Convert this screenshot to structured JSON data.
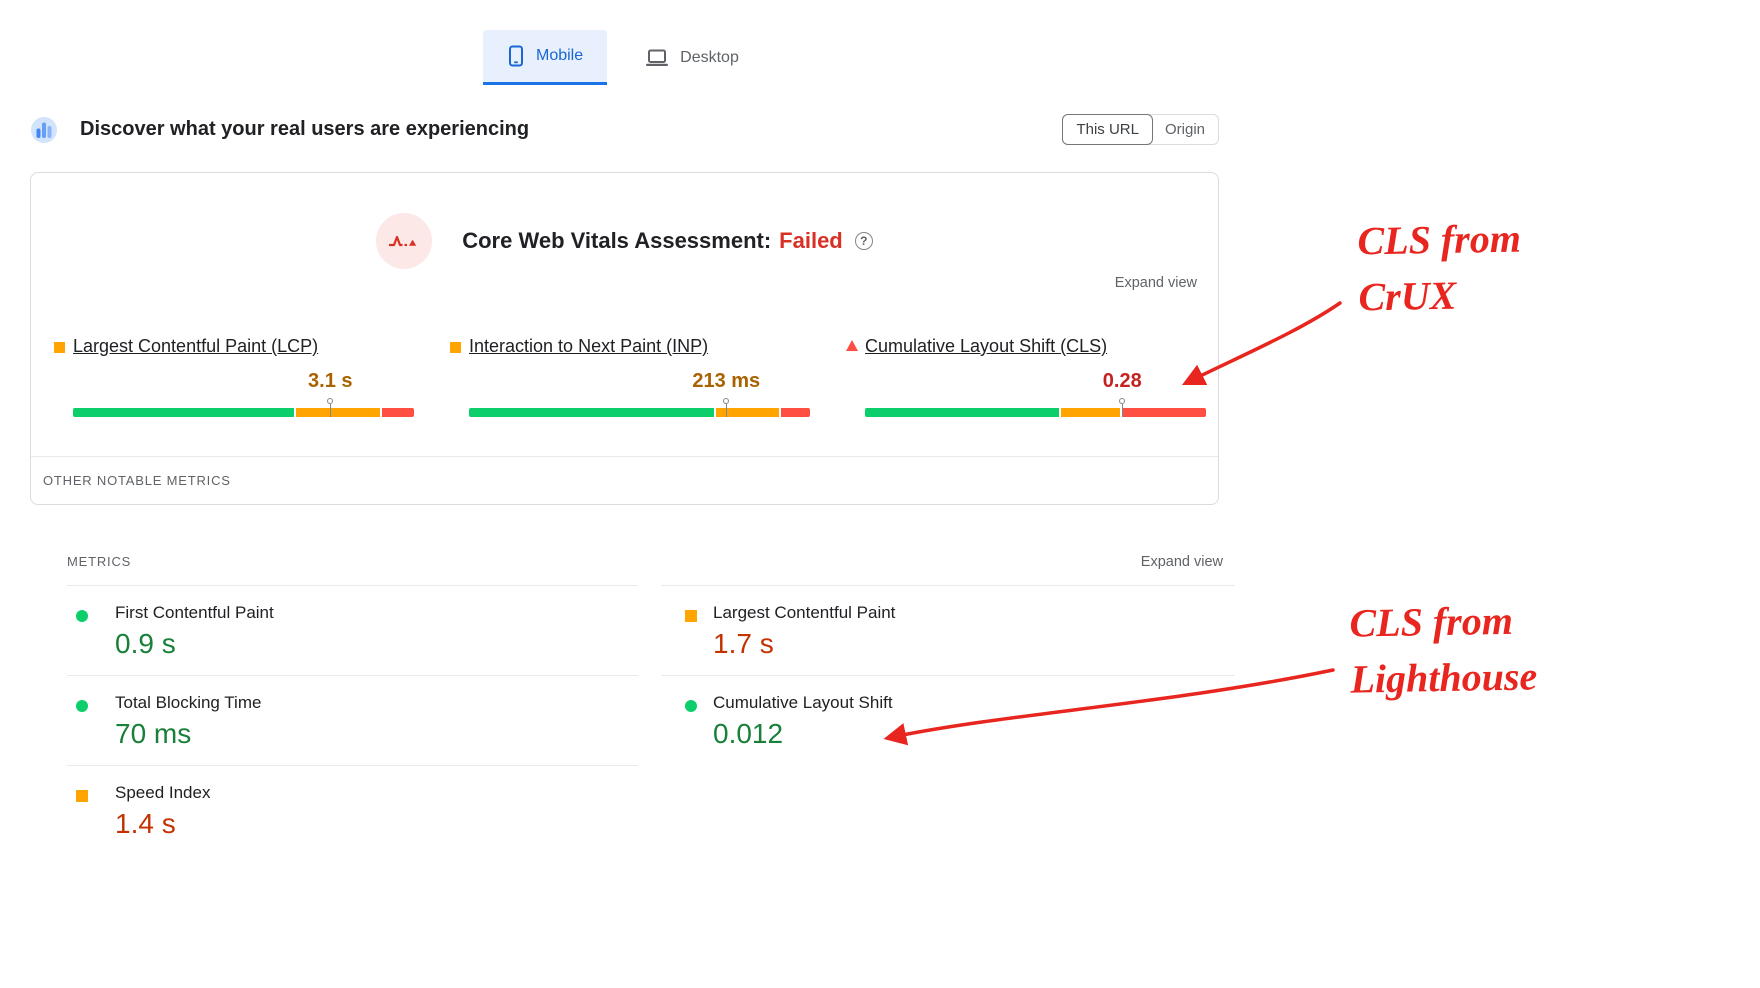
{
  "device_tabs": {
    "mobile": "Mobile",
    "desktop": "Desktop"
  },
  "field_header": {
    "title": "Discover what your real users are experiencing",
    "scope_toggle": {
      "this_url": "This URL",
      "origin": "Origin"
    }
  },
  "cwv_card": {
    "assessment_label": "Core Web Vitals Assessment:",
    "assessment_result": "Failed",
    "expand_view": "Expand view",
    "other_metrics_label": "OTHER NOTABLE METRICS",
    "metrics": [
      {
        "name": "Largest Contentful Paint (LCP)",
        "value": "3.1 s",
        "rating": "ni",
        "icon": "square",
        "distribution_pct": [
          65,
          25,
          10
        ],
        "marker_pct": 75
      },
      {
        "name": "Interaction to Next Paint (INP)",
        "value": "213 ms",
        "rating": "ni",
        "icon": "square",
        "distribution_pct": [
          72,
          19,
          9
        ],
        "marker_pct": 75
      },
      {
        "name": "Cumulative Layout Shift (CLS)",
        "value": "0.28",
        "rating": "poor",
        "icon": "triangle",
        "distribution_pct": [
          57,
          18,
          25
        ],
        "marker_pct": 75
      }
    ]
  },
  "lab_card": {
    "section_label": "METRICS",
    "expand_view": "Expand view",
    "left_metrics": [
      {
        "name": "First Contentful Paint",
        "value": "0.9 s",
        "rating": "good",
        "icon": "circle"
      },
      {
        "name": "Total Blocking Time",
        "value": "70 ms",
        "rating": "good",
        "icon": "circle"
      },
      {
        "name": "Speed Index",
        "value": "1.4 s",
        "rating": "ni",
        "icon": "square"
      }
    ],
    "right_metrics": [
      {
        "name": "Largest Contentful Paint",
        "value": "1.7 s",
        "rating": "ni",
        "icon": "square"
      },
      {
        "name": "Cumulative Layout Shift",
        "value": "0.012",
        "rating": "good",
        "icon": "circle"
      }
    ]
  },
  "annotations": {
    "crux": {
      "line1": "CLS from",
      "line2": "CrUX"
    },
    "lighthouse": {
      "line1": "CLS from",
      "line2": "Lighthouse"
    }
  },
  "colors": {
    "accent_blue": "#1967d2",
    "tab_highlight": "#e8f0fe",
    "bar_good_green": "#0cce6b",
    "bar_ni_orange": "#ffa400",
    "bar_poor_red": "#ff4e42",
    "value_green": "#188038",
    "value_orange_field": "#a86200",
    "value_red_field": "#c5221f",
    "value_orange_lab": "#c33300",
    "failed_red": "#d93025",
    "annotation_red": "#e8251f"
  }
}
